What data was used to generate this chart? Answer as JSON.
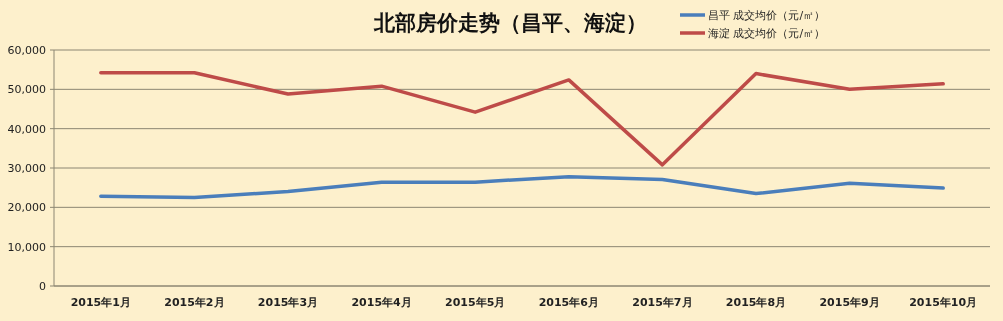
{
  "chart_data": {
    "type": "line",
    "title": "北部房价走势（昌平、海淀）",
    "categories": [
      "2015年1月",
      "2015年2月",
      "2015年3月",
      "2015年4月",
      "2015年5月",
      "2015年6月",
      "2015年7月",
      "2015年8月",
      "2015年9月",
      "2015年10月"
    ],
    "series": [
      {
        "name": "昌平 成交均价（元/㎡）",
        "color": "#4a7ebb",
        "values": [
          22800,
          22500,
          24000,
          26400,
          26400,
          27800,
          27100,
          23500,
          26100,
          24900
        ]
      },
      {
        "name": "海淀 成交均价（元/㎡）",
        "color": "#be4b48",
        "values": [
          54200,
          54200,
          48800,
          50800,
          44200,
          52400,
          30800,
          54000,
          50000,
          51400
        ]
      }
    ],
    "ylim": [
      0,
      60000
    ],
    "yticks": [
      {
        "value": 0,
        "label": "0"
      },
      {
        "value": 10000,
        "label": "10,000"
      },
      {
        "value": 20000,
        "label": "20,000"
      },
      {
        "value": 30000,
        "label": "30,000"
      },
      {
        "value": 40000,
        "label": "40,000"
      },
      {
        "value": 50000,
        "label": "50,000"
      },
      {
        "value": 60000,
        "label": "60,000"
      }
    ],
    "grid": "y",
    "legend": "top right",
    "marker": "none",
    "line_style": "solid"
  }
}
